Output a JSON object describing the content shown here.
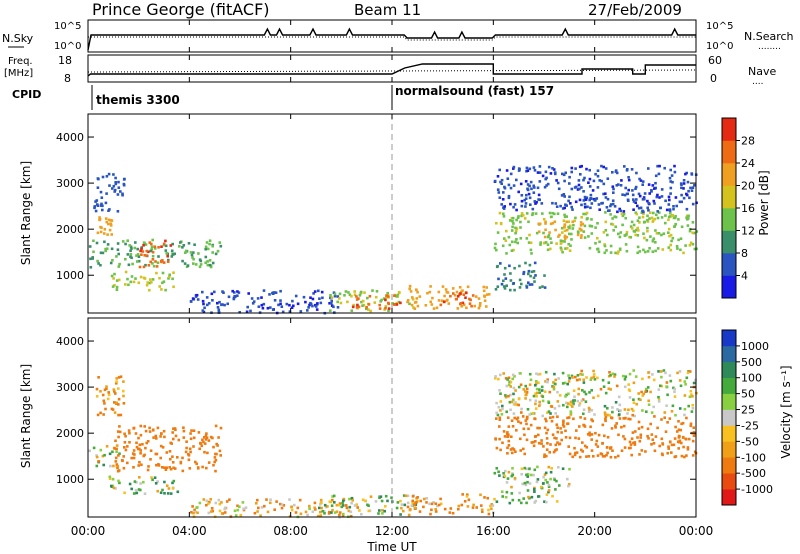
{
  "header": {
    "station": "Prince George (fitACF)",
    "beam": "Beam 11",
    "date": "27/Feb/2009"
  },
  "noise_panel": {
    "left_label": "N.Sky",
    "left_ticks": [
      "10^5",
      "10^0"
    ],
    "right_ticks": [
      "10^5",
      "10^0"
    ],
    "right_label": "N.Search",
    "right_label_dots": "........"
  },
  "freq_panel": {
    "left_label_1": "Freq.",
    "left_label_2": "[MHz]",
    "left_ticks": [
      "18",
      "8"
    ],
    "right_ticks": [
      "60",
      "0"
    ],
    "right_label": "Nave",
    "right_label_dots": "...."
  },
  "cpid": {
    "label": "CPID",
    "modes": [
      {
        "name": "themis 3300",
        "start_hour": 0
      },
      {
        "name": "normalsound (fast) 157",
        "start_hour": 12
      }
    ]
  },
  "power_panel": {
    "ylabel": "Slant Range [km]",
    "yticks": [
      "1000",
      "2000",
      "3000",
      "4000"
    ],
    "colorbar_label": "Power [dB]",
    "colorbar_ticks": [
      "4",
      "8",
      "12",
      "16",
      "20",
      "24",
      "28"
    ],
    "colors": [
      "#1a1ae6",
      "#2a55c0",
      "#3a8f6a",
      "#6cc24a",
      "#d4c21e",
      "#f0a020",
      "#ee6a14",
      "#e42a12"
    ]
  },
  "velocity_panel": {
    "ylabel": "Slant Range [km]",
    "yticks": [
      "1000",
      "2000",
      "3000",
      "4000"
    ],
    "colorbar_label": "Velocity [m s⁻¹]",
    "colorbar_ticks": [
      "1000",
      "500",
      "100",
      "50",
      "25",
      "-25",
      "-50",
      "-100",
      "-500",
      "-1000"
    ],
    "colors": [
      "#1838c8",
      "#2a6aa0",
      "#2f8a5a",
      "#45aa3c",
      "#88d040",
      "#c8c8c8",
      "#f8c020",
      "#f0a018",
      "#ee7a10",
      "#e84a10",
      "#e01818"
    ]
  },
  "time_axis": {
    "xticks": [
      "00:00",
      "04:00",
      "08:00",
      "12:00",
      "16:00",
      "20:00",
      "00:00"
    ],
    "xlabel": "Time UT"
  },
  "chart_data": [
    {
      "type": "heatmap",
      "title": "Power",
      "xlabel": "Time UT",
      "ylabel": "Slant Range [km]",
      "x_range_hours": [
        0,
        24
      ],
      "y_range_km": [
        180,
        4500
      ],
      "colorbar": "Power [dB]",
      "color_range": [
        0,
        32
      ],
      "regions": [
        {
          "t": [
            0.2,
            0.9
          ],
          "r": [
            1900,
            2300
          ],
          "v": 22
        },
        {
          "t": [
            0.2,
            1.4
          ],
          "r": [
            2400,
            3300
          ],
          "v": 6
        },
        {
          "t": [
            0.0,
            5.2
          ],
          "r": [
            1200,
            1800
          ],
          "v": 12
        },
        {
          "t": [
            2.0,
            3.3
          ],
          "r": [
            1200,
            1800
          ],
          "v": 27
        },
        {
          "t": [
            0.8,
            3.4
          ],
          "r": [
            700,
            1100
          ],
          "v": 16
        },
        {
          "t": [
            4.0,
            10.0
          ],
          "r": [
            200,
            700
          ],
          "v": 5
        },
        {
          "t": [
            9.5,
            12.8
          ],
          "r": [
            250,
            700
          ],
          "v": 16
        },
        {
          "t": [
            10.3,
            12.3
          ],
          "r": [
            300,
            600
          ],
          "v": 27
        },
        {
          "t": [
            12.5,
            15.8
          ],
          "r": [
            300,
            800
          ],
          "v": 22
        },
        {
          "t": [
            13.8,
            15.3
          ],
          "r": [
            350,
            650
          ],
          "v": 27
        },
        {
          "t": [
            16.0,
            24.0
          ],
          "r": [
            1500,
            2400
          ],
          "v": 15
        },
        {
          "t": [
            17.5,
            19.5
          ],
          "r": [
            1800,
            2200
          ],
          "v": 22
        },
        {
          "t": [
            16.0,
            24.0
          ],
          "r": [
            2400,
            3400
          ],
          "v": 5
        },
        {
          "t": [
            16.0,
            18.0
          ],
          "r": [
            700,
            1300
          ],
          "v": 9
        }
      ]
    },
    {
      "type": "heatmap",
      "title": "Velocity",
      "xlabel": "Time UT",
      "ylabel": "Slant Range [km]",
      "x_range_hours": [
        0,
        24
      ],
      "y_range_km": [
        180,
        4500
      ],
      "colorbar": "Velocity [m s⁻¹]",
      "color_range": [
        -1000,
        1000
      ],
      "regions": [
        {
          "t": [
            0.3,
            1.4
          ],
          "r": [
            2400,
            3300
          ],
          "v": -150
        },
        {
          "t": [
            0.0,
            1.2
          ],
          "r": [
            1300,
            1800
          ],
          "v": 0
        },
        {
          "t": [
            1.0,
            5.2
          ],
          "r": [
            1200,
            2200
          ],
          "v": -250
        },
        {
          "t": [
            0.8,
            3.5
          ],
          "r": [
            700,
            1100
          ],
          "v": 40
        },
        {
          "t": [
            4.0,
            11.0
          ],
          "r": [
            200,
            600
          ],
          "v": -80
        },
        {
          "t": [
            9.0,
            13.0
          ],
          "r": [
            250,
            700
          ],
          "v": 30
        },
        {
          "t": [
            12.5,
            16.0
          ],
          "r": [
            250,
            700
          ],
          "v": -120
        },
        {
          "t": [
            16.0,
            24.0
          ],
          "r": [
            1500,
            2400
          ],
          "v": -250
        },
        {
          "t": [
            16.0,
            24.0
          ],
          "r": [
            2400,
            3400
          ],
          "v": 0
        },
        {
          "t": [
            16.0,
            19.0
          ],
          "r": [
            500,
            1300
          ],
          "v": 30
        }
      ]
    }
  ]
}
